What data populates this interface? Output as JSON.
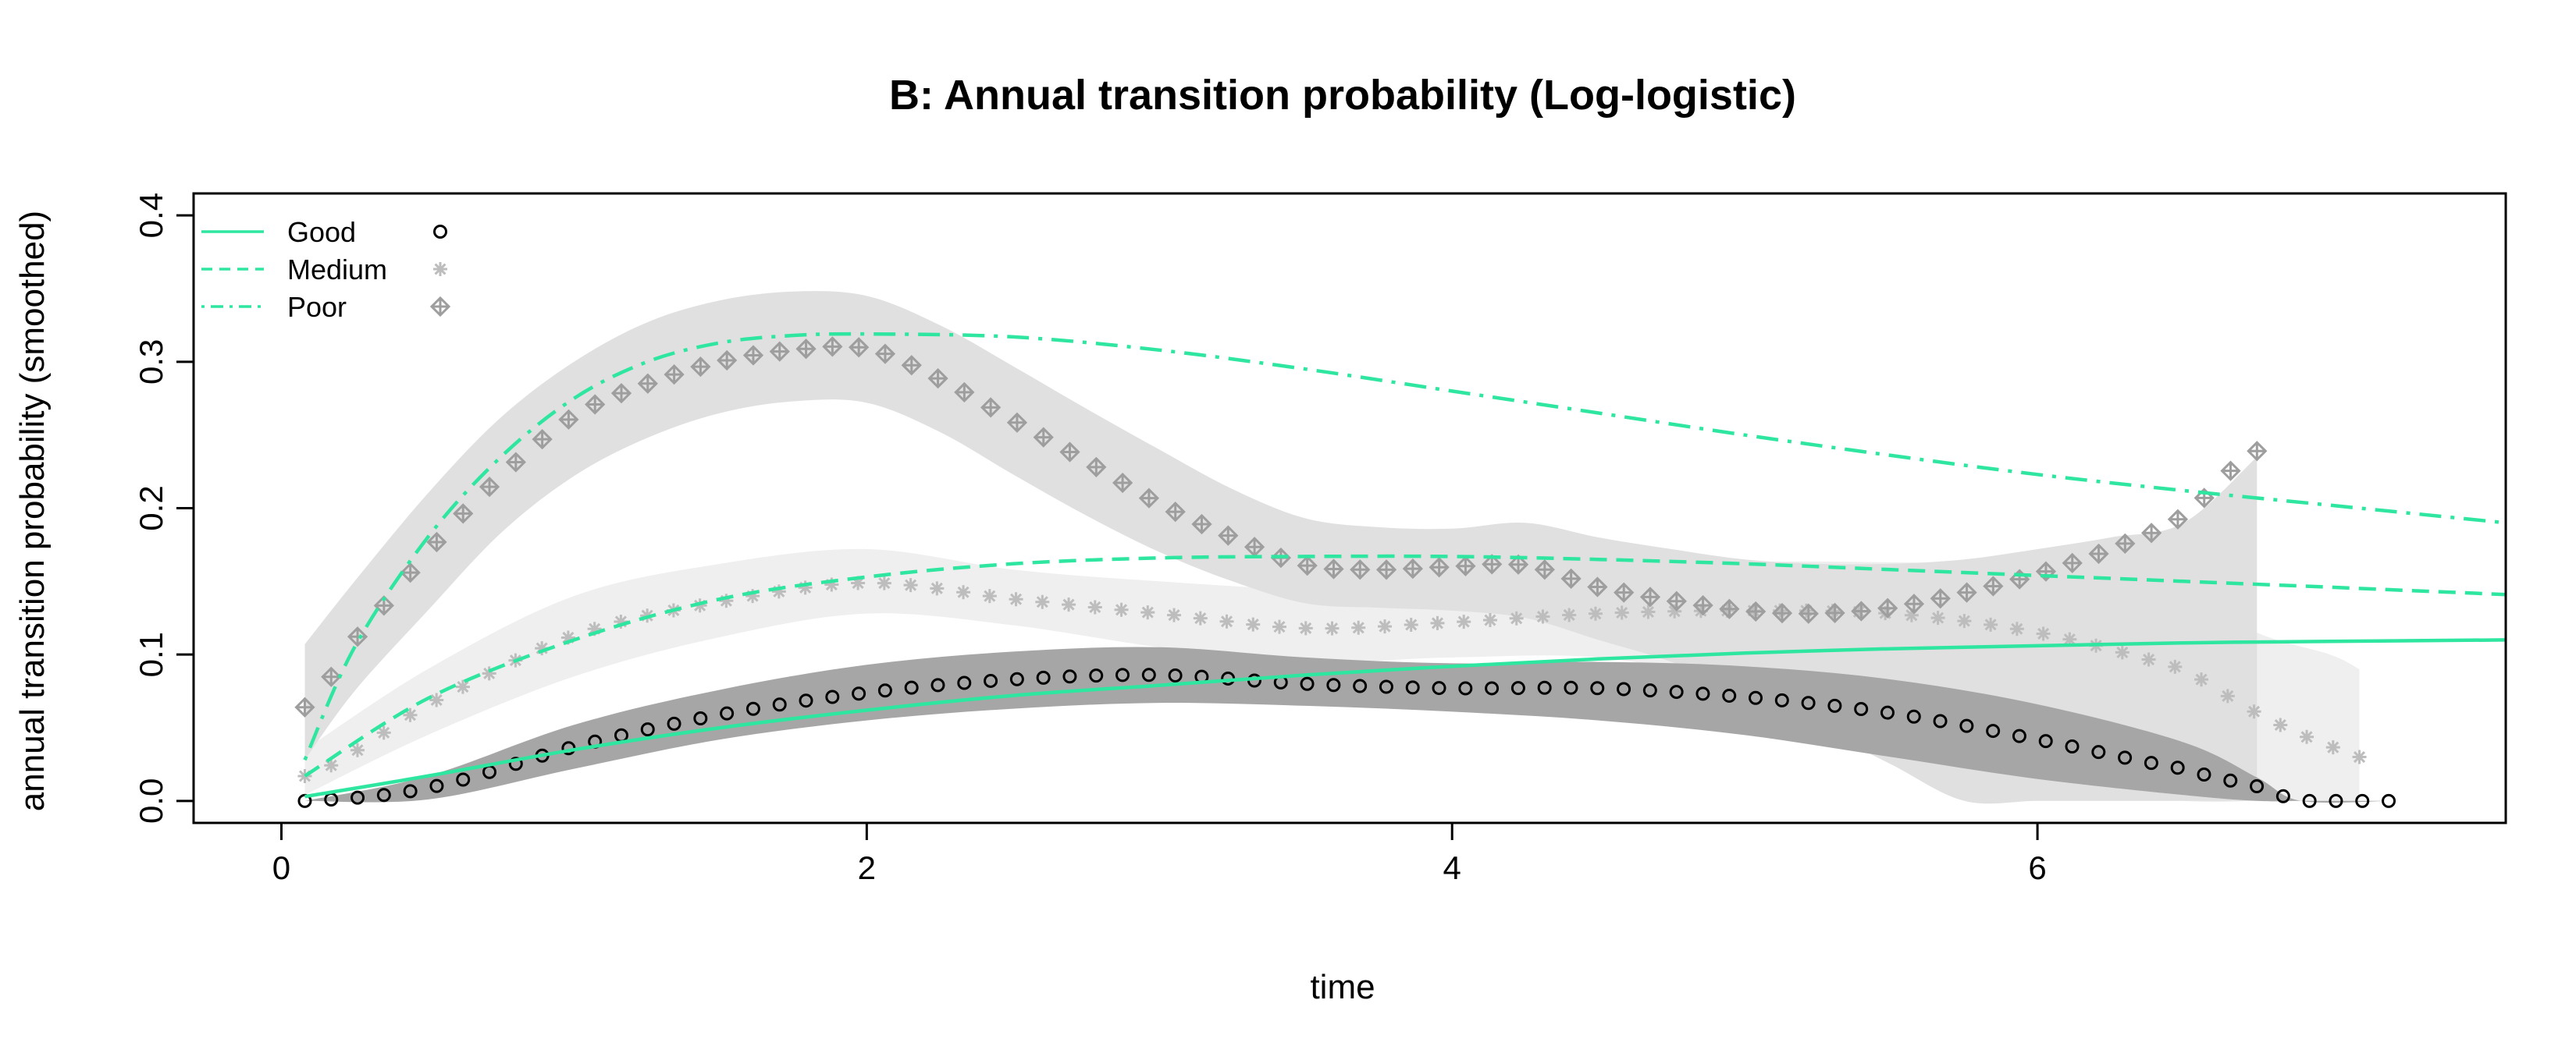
{
  "chart_data": {
    "type": "line",
    "title": "B: Annual transition probability (Log-logistic)",
    "xlabel": "time",
    "ylabel": "annual transition probability (smoothed)",
    "xlim": [
      -0.3,
      7.6
    ],
    "ylim": [
      -0.015,
      0.415
    ],
    "xticks": [
      "0",
      "2",
      "4",
      "6"
    ],
    "xtick_values": [
      0,
      2,
      4,
      6
    ],
    "yticks": [
      "0.0",
      "0.1",
      "0.2",
      "0.3",
      "0.4"
    ],
    "ytick_values": [
      0,
      0.1,
      0.2,
      0.3,
      0.4
    ],
    "grid": false,
    "legend_position": "top-left",
    "colors": {
      "curve": "#2EE6A0",
      "good_points": "#000000",
      "medium_points": "#BDBDBD",
      "poor_points": "#9E9E9E",
      "good_band": "#A6A6A6",
      "medium_band": "#EFEFEF",
      "poor_band": "#E0E0E0"
    },
    "legend": [
      {
        "label": "Good",
        "line": "solid",
        "marker": "circle"
      },
      {
        "label": "Medium",
        "line": "dashed",
        "marker": "asterisk"
      },
      {
        "label": "Poor",
        "line": "dotdash",
        "marker": "diamond-plus"
      }
    ],
    "series": [
      {
        "name": "Good",
        "kind": "fitted-curve",
        "line": "solid",
        "x": [
          0.08,
          0.5,
          1.0,
          1.5,
          2.0,
          2.5,
          3.0,
          3.5,
          4.0,
          4.5,
          5.0,
          5.5,
          6.0,
          6.5,
          7.0,
          7.6
        ],
        "y": [
          0.003,
          0.017,
          0.035,
          0.05,
          0.062,
          0.072,
          0.079,
          0.086,
          0.092,
          0.097,
          0.101,
          0.104,
          0.106,
          0.108,
          0.109,
          0.11
        ]
      },
      {
        "name": "Medium",
        "kind": "fitted-curve",
        "line": "dashed",
        "x": [
          0.08,
          0.5,
          1.0,
          1.5,
          2.0,
          2.5,
          3.0,
          3.5,
          4.0,
          4.5,
          5.0,
          5.5,
          6.0,
          6.5,
          7.0,
          7.6
        ],
        "y": [
          0.017,
          0.07,
          0.11,
          0.138,
          0.153,
          0.162,
          0.166,
          0.167,
          0.167,
          0.165,
          0.162,
          0.158,
          0.154,
          0.15,
          0.146,
          0.141
        ]
      },
      {
        "name": "Poor",
        "kind": "fitted-curve",
        "line": "dotdash",
        "x": [
          0.08,
          0.25,
          0.5,
          0.75,
          1.0,
          1.25,
          1.5,
          1.75,
          2.0,
          2.5,
          3.0,
          3.5,
          4.0,
          4.5,
          5.0,
          5.5,
          6.0,
          6.5,
          7.0,
          7.6
        ],
        "y": [
          0.028,
          0.105,
          0.18,
          0.235,
          0.275,
          0.3,
          0.313,
          0.318,
          0.319,
          0.317,
          0.308,
          0.295,
          0.28,
          0.265,
          0.25,
          0.236,
          0.223,
          0.212,
          0.202,
          0.19
        ]
      },
      {
        "name": "Good",
        "kind": "smoothed-points",
        "marker": "circle",
        "x": [
          0.08,
          0.5,
          1.0,
          1.5,
          2.0,
          2.5,
          3.0,
          3.5,
          4.0,
          4.5,
          5.0,
          5.5,
          6.0,
          6.5,
          6.75,
          6.9,
          7.2
        ],
        "y": [
          0.0,
          0.009,
          0.037,
          0.059,
          0.074,
          0.083,
          0.086,
          0.08,
          0.077,
          0.077,
          0.071,
          0.06,
          0.042,
          0.022,
          0.01,
          0.0,
          0.0
        ],
        "band_lo": [
          0.0,
          0.001,
          0.022,
          0.042,
          0.055,
          0.063,
          0.067,
          0.065,
          0.061,
          0.055,
          0.045,
          0.03,
          0.015,
          0.004,
          0.0,
          0.0,
          0.0
        ],
        "band_hi": [
          0.0,
          0.017,
          0.052,
          0.076,
          0.093,
          0.102,
          0.105,
          0.098,
          0.094,
          0.095,
          0.092,
          0.083,
          0.066,
          0.04,
          0.016,
          0.0,
          0.0
        ]
      },
      {
        "name": "Medium",
        "kind": "smoothed-points",
        "marker": "asterisk",
        "x": [
          0.08,
          0.5,
          1.0,
          1.5,
          2.0,
          2.5,
          3.0,
          3.5,
          4.0,
          4.5,
          5.0,
          5.5,
          6.0,
          6.5,
          6.75,
          7.0,
          7.1
        ],
        "y": [
          0.017,
          0.066,
          0.113,
          0.136,
          0.149,
          0.138,
          0.128,
          0.118,
          0.122,
          0.128,
          0.13,
          0.128,
          0.115,
          0.09,
          0.06,
          0.038,
          0.03
        ],
        "band_lo": [
          0.004,
          0.045,
          0.085,
          0.112,
          0.128,
          0.12,
          0.105,
          0.095,
          0.098,
          0.098,
          0.08,
          0.055,
          0.01,
          0.0,
          0.0,
          0.0,
          0.0
        ],
        "band_hi": [
          0.035,
          0.09,
          0.14,
          0.162,
          0.172,
          0.158,
          0.15,
          0.145,
          0.15,
          0.157,
          0.163,
          0.163,
          0.16,
          0.145,
          0.115,
          0.1,
          0.09
        ]
      },
      {
        "name": "Poor",
        "kind": "smoothed-points",
        "marker": "diamond-plus",
        "x": [
          0.08,
          0.25,
          0.5,
          0.75,
          1.0,
          1.25,
          1.5,
          1.75,
          2.0,
          2.25,
          2.5,
          2.75,
          3.0,
          3.25,
          3.5,
          3.75,
          4.0,
          4.25,
          4.5,
          4.75,
          5.0,
          5.25,
          5.5,
          5.75,
          6.0,
          6.25,
          6.5,
          6.75
        ],
        "y": [
          0.064,
          0.11,
          0.17,
          0.222,
          0.263,
          0.285,
          0.3,
          0.308,
          0.309,
          0.288,
          0.26,
          0.232,
          0.203,
          0.18,
          0.161,
          0.158,
          0.16,
          0.161,
          0.146,
          0.137,
          0.13,
          0.128,
          0.132,
          0.142,
          0.155,
          0.172,
          0.195,
          0.239
        ],
        "band_lo": [
          0.028,
          0.075,
          0.13,
          0.183,
          0.222,
          0.248,
          0.265,
          0.273,
          0.272,
          0.252,
          0.223,
          0.195,
          0.17,
          0.15,
          0.135,
          0.132,
          0.13,
          0.125,
          0.11,
          0.095,
          0.075,
          0.05,
          0.025,
          0.0,
          0.0,
          0.0,
          0.0,
          0.0
        ],
        "band_hi": [
          0.107,
          0.15,
          0.21,
          0.262,
          0.3,
          0.327,
          0.342,
          0.348,
          0.345,
          0.325,
          0.297,
          0.268,
          0.24,
          0.213,
          0.193,
          0.187,
          0.186,
          0.19,
          0.18,
          0.172,
          0.165,
          0.162,
          0.162,
          0.165,
          0.172,
          0.18,
          0.19,
          0.235
        ]
      }
    ]
  }
}
